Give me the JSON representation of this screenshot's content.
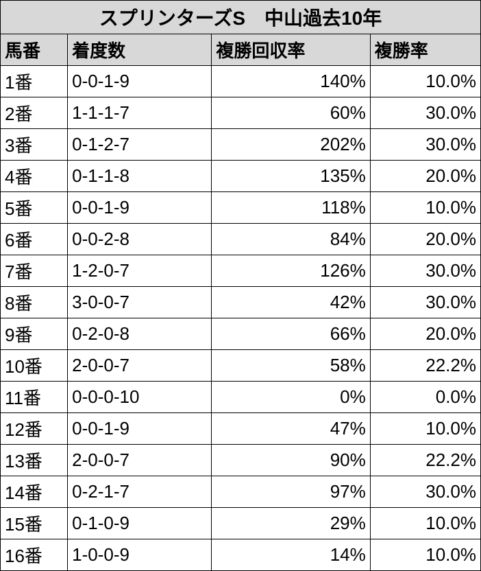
{
  "table": {
    "title": "スプリンターズS　中山過去10年",
    "columns": [
      "馬番",
      "着度数",
      "複勝回収率",
      "複勝率"
    ],
    "col_align": [
      "left",
      "left",
      "right",
      "right"
    ],
    "title_bg": "#d8d8d8",
    "header_bg": "#d8d8d8",
    "border_color": "#000000",
    "title_fontsize": 28,
    "header_fontsize": 26,
    "cell_fontsize": 26,
    "rows": [
      {
        "uma": "1番",
        "chaku": "0-0-1-9",
        "recovery": "140%",
        "rate": "10.0%"
      },
      {
        "uma": "2番",
        "chaku": "1-1-1-7",
        "recovery": "60%",
        "rate": "30.0%"
      },
      {
        "uma": "3番",
        "chaku": "0-1-2-7",
        "recovery": "202%",
        "rate": "30.0%"
      },
      {
        "uma": "4番",
        "chaku": "0-1-1-8",
        "recovery": "135%",
        "rate": "20.0%"
      },
      {
        "uma": "5番",
        "chaku": "0-0-1-9",
        "recovery": "118%",
        "rate": "10.0%"
      },
      {
        "uma": "6番",
        "chaku": "0-0-2-8",
        "recovery": "84%",
        "rate": "20.0%"
      },
      {
        "uma": "7番",
        "chaku": "1-2-0-7",
        "recovery": "126%",
        "rate": "30.0%"
      },
      {
        "uma": "8番",
        "chaku": "3-0-0-7",
        "recovery": "42%",
        "rate": "30.0%"
      },
      {
        "uma": "9番",
        "chaku": "0-2-0-8",
        "recovery": "66%",
        "rate": "20.0%"
      },
      {
        "uma": "10番",
        "chaku": "2-0-0-7",
        "recovery": "58%",
        "rate": "22.2%"
      },
      {
        "uma": "11番",
        "chaku": "0-0-0-10",
        "recovery": "0%",
        "rate": "0.0%"
      },
      {
        "uma": "12番",
        "chaku": "0-0-1-9",
        "recovery": "47%",
        "rate": "10.0%"
      },
      {
        "uma": "13番",
        "chaku": "2-0-0-7",
        "recovery": "90%",
        "rate": "22.2%"
      },
      {
        "uma": "14番",
        "chaku": "0-2-1-7",
        "recovery": "97%",
        "rate": "30.0%"
      },
      {
        "uma": "15番",
        "chaku": "0-1-0-9",
        "recovery": "29%",
        "rate": "10.0%"
      },
      {
        "uma": "16番",
        "chaku": "1-0-0-9",
        "recovery": "14%",
        "rate": "10.0%"
      }
    ]
  }
}
